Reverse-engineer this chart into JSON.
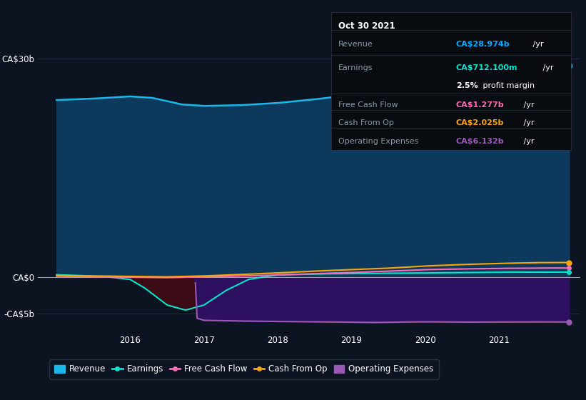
{
  "bg_color": "#0d1421",
  "plot_bg_color": "#0d1421",
  "title_box": {
    "date": "Oct 30 2021",
    "revenue_label": "Revenue",
    "revenue_value": "CA$28.974b",
    "revenue_color": "#00aaff",
    "earnings_label": "Earnings",
    "earnings_value": "CA$712.100m",
    "earnings_color": "#00e5cc",
    "margin_text": "2.5% profit margin",
    "fcf_label": "Free Cash Flow",
    "fcf_value": "CA$1.277b",
    "fcf_color": "#ff69b4",
    "cashop_label": "Cash From Op",
    "cashop_value": "CA$2.025b",
    "cashop_color": "#ffa500",
    "opex_label": "Operating Expenses",
    "opex_value": "CA$6.132b",
    "opex_color": "#9b59b6"
  },
  "ylim": [
    -7500000000,
    35000000000
  ],
  "ytick_vals": [
    -5000000000,
    0,
    30000000000
  ],
  "ytick_labels": [
    "-CA$5b",
    "CA$0",
    "CA$30b"
  ],
  "xlim_start": 2014.75,
  "xlim_end": 2022.1,
  "xticks": [
    2016,
    2017,
    2018,
    2019,
    2020,
    2021
  ],
  "revenue_color": "#1ab8e8",
  "revenue_fill_color": "#0d3a5c",
  "earnings_color": "#00e5cc",
  "earnings_neg_fill": "#3a0a15",
  "fcf_color": "#ff69b4",
  "cashop_color": "#ffa500",
  "opex_color": "#9b59b6",
  "opex_fill_color": "#2d1060",
  "legend_items": [
    {
      "label": "Revenue",
      "color": "#1ab8e8",
      "type": "fill"
    },
    {
      "label": "Earnings",
      "color": "#00e5cc",
      "type": "line"
    },
    {
      "label": "Free Cash Flow",
      "color": "#ff69b4",
      "type": "line"
    },
    {
      "label": "Cash From Op",
      "color": "#ffa500",
      "type": "line"
    },
    {
      "label": "Operating Expenses",
      "color": "#9b59b6",
      "type": "fill"
    }
  ]
}
